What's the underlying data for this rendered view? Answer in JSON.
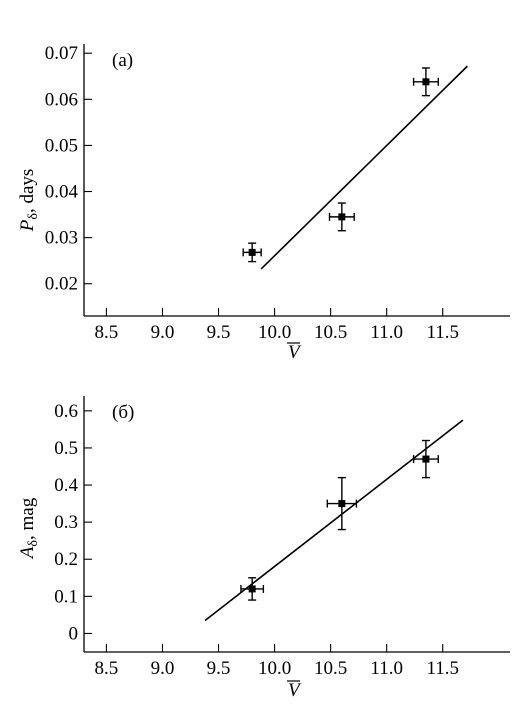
{
  "chart_data": [
    {
      "panel": "(a)",
      "type": "scatter",
      "xlabel": "V",
      "ylabel": "Pδ, days",
      "ylabel_main": "P",
      "ylabel_sub": "δ",
      "ylabel_rest": ", days",
      "xlim": [
        8.3,
        12.1
      ],
      "ylim": [
        0.013,
        0.072
      ],
      "xticks": [
        8.5,
        9.0,
        9.5,
        10.0,
        10.5,
        11.0,
        11.5
      ],
      "xticklabels": [
        "8.5",
        "9.0",
        "9.5",
        "10.0",
        "10.5",
        "11.0",
        "11.5"
      ],
      "yticks": [
        0.02,
        0.03,
        0.04,
        0.05,
        0.06,
        0.07
      ],
      "yticklabels": [
        "0.02",
        "0.03",
        "0.04",
        "0.05",
        "0.06",
        "0.07"
      ],
      "points": [
        {
          "x": 9.8,
          "y": 0.0268,
          "xerr": 0.08,
          "yerr": 0.002
        },
        {
          "x": 10.6,
          "y": 0.0345,
          "xerr": 0.11,
          "yerr": 0.003
        },
        {
          "x": 11.35,
          "y": 0.0638,
          "xerr": 0.11,
          "yerr": 0.003
        }
      ],
      "fit_line": {
        "x": [
          9.88,
          11.72
        ],
        "y": [
          0.0232,
          0.0672
        ]
      }
    },
    {
      "panel": "(б)",
      "type": "scatter",
      "xlabel": "V",
      "ylabel": "Aδ, mag",
      "ylabel_main": "A",
      "ylabel_sub": "δ",
      "ylabel_rest": ", mag",
      "xlim": [
        8.3,
        12.1
      ],
      "ylim": [
        -0.05,
        0.64
      ],
      "xticks": [
        8.5,
        9.0,
        9.5,
        10.0,
        10.5,
        11.0,
        11.5
      ],
      "xticklabels": [
        "8.5",
        "9.0",
        "9.5",
        "10.0",
        "10.5",
        "11.0",
        "11.5"
      ],
      "yticks": [
        0,
        0.1,
        0.2,
        0.3,
        0.4,
        0.5,
        0.6
      ],
      "yticklabels": [
        "0",
        "0.1",
        "0.2",
        "0.3",
        "0.4",
        "0.5",
        "0.6"
      ],
      "points": [
        {
          "x": 9.8,
          "y": 0.12,
          "xerr": 0.1,
          "yerr": 0.03
        },
        {
          "x": 10.6,
          "y": 0.35,
          "xerr": 0.13,
          "yerr": 0.07
        },
        {
          "x": 11.35,
          "y": 0.47,
          "xerr": 0.11,
          "yerr": 0.05
        }
      ],
      "fit_line": {
        "x": [
          9.38,
          11.68
        ],
        "y": [
          0.035,
          0.575
        ]
      }
    }
  ]
}
